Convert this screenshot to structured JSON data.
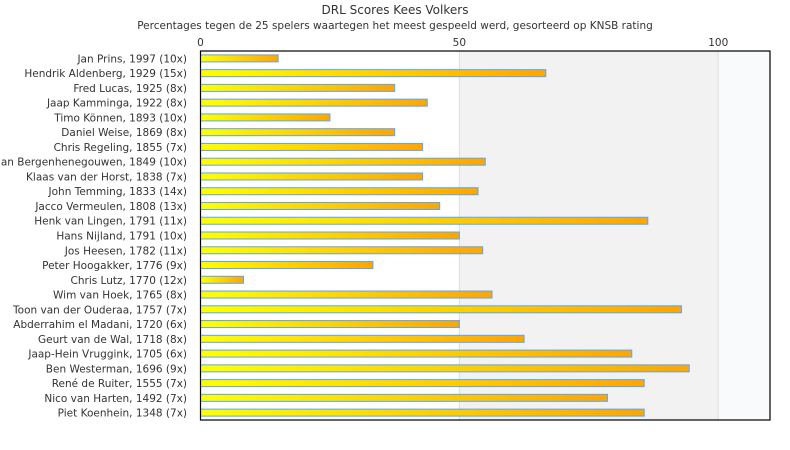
{
  "chart_data": {
    "type": "bar",
    "orientation": "horizontal",
    "title": "DRL Scores Kees Volkers",
    "subtitle": "Percentages tegen de 25 spelers waartegen het meest gespeeld werd, gesorteerd op KNSB rating",
    "xlabel": "",
    "ylabel": "",
    "xlim": [
      0,
      110
    ],
    "xticks": [
      "0",
      "50",
      "100"
    ],
    "tick_values": [
      0,
      50,
      100
    ],
    "bands": [
      {
        "from": 0,
        "to": 50,
        "color": "#ffffff"
      },
      {
        "from": 50,
        "to": 100,
        "color": "#f2f2f2"
      },
      {
        "from": 100,
        "to": 110,
        "color": "#f8fafc"
      }
    ],
    "colors": {
      "bar_start": "#ffff00",
      "bar_end": "#ffa500",
      "bar_border": "#5aa7f0",
      "axis": "#000000",
      "grid": "#dddddd"
    },
    "categories": [
      "Jan Prins, 1997 (10x)",
      "Hendrik Aldenberg, 1929 (15x)",
      "Fred Lucas, 1925 (8x)",
      "Jaap Kamminga, 1922 (8x)",
      "Timo Können, 1893 (10x)",
      "Daniel Weise, 1869 (8x)",
      "Chris Regeling, 1855 (7x)",
      "an Bergenhenegouwen, 1849 (10x)",
      "Klaas van der Horst, 1838 (7x)",
      "John Temming, 1833 (14x)",
      "Jacco Vermeulen, 1808 (13x)",
      "Henk van Lingen, 1791 (11x)",
      "Hans Nijland, 1791 (10x)",
      "Jos Heesen, 1782 (11x)",
      "Peter Hoogakker, 1776 (9x)",
      "Chris Lutz, 1770 (12x)",
      "Wim van Hoek, 1765 (8x)",
      "Toon van der Ouderaa, 1757 (7x)",
      "Abderrahim el Madani, 1720 (6x)",
      "Geurt van de Wal, 1718 (8x)",
      "Jaap-Hein Vruggink, 1705 (6x)",
      "Ben Westerman, 1696 (9x)",
      "René de Ruiter, 1555 (7x)",
      "Nico van Harten, 1492 (7x)",
      "Piet Koenhein, 1348 (7x)"
    ],
    "values": [
      15,
      66.7,
      37.5,
      43.8,
      25,
      37.5,
      42.9,
      55,
      42.9,
      53.6,
      46.2,
      86.4,
      50,
      54.5,
      33.3,
      8.3,
      56.3,
      92.9,
      50,
      62.5,
      83.3,
      94.4,
      85.7,
      78.6,
      85.7
    ]
  }
}
